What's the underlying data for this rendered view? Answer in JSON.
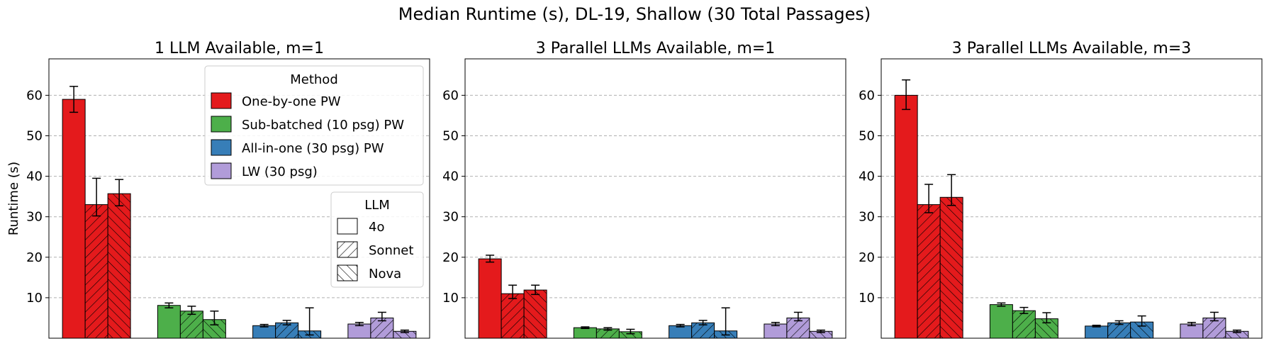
{
  "figure": {
    "suptitle": "Median Runtime (s), DL-19, Shallow (30 Total Passages)"
  },
  "legend_method": {
    "title": "Method",
    "entries": [
      {
        "label": "One-by-one PW",
        "color": "#e41a1c"
      },
      {
        "label": "Sub-batched (10 psg) PW",
        "color": "#4daf4a"
      },
      {
        "label": "All-in-one (30 psg) PW",
        "color": "#377eb8"
      },
      {
        "label": "LW (30 psg)",
        "color": "#b19cd9"
      }
    ]
  },
  "legend_llm": {
    "title": "LLM",
    "entries": [
      {
        "label": "4o",
        "hatch": "none"
      },
      {
        "label": "Sonnet",
        "hatch": "forward-diagonal"
      },
      {
        "label": "Nova",
        "hatch": "backward-diagonal"
      }
    ]
  },
  "chart_data": [
    {
      "type": "bar",
      "title": "1 LLM Available, m=1",
      "ylabel": "Runtime (s)",
      "ylim": [
        0,
        69
      ],
      "yticks": [
        10,
        20,
        30,
        40,
        50,
        60
      ],
      "grid": "y-dashed",
      "legend_position": "upper-right",
      "groups": [
        "One-by-one PW",
        "Sub-batched (10 psg) PW",
        "All-in-one (30 psg) PW",
        "LW (30 psg)"
      ],
      "series": [
        {
          "name": "4o",
          "values": [
            59.0,
            8.1,
            3.1,
            3.5
          ],
          "err_low": [
            3.2,
            0.6,
            0.3,
            0.4
          ],
          "err_high": [
            3.2,
            0.6,
            0.3,
            0.4
          ]
        },
        {
          "name": "Sonnet",
          "values": [
            33.0,
            6.7,
            3.8,
            5.0
          ],
          "err_low": [
            2.8,
            0.8,
            0.5,
            0.7
          ],
          "err_high": [
            6.5,
            1.2,
            0.6,
            1.4
          ]
        },
        {
          "name": "Nova",
          "values": [
            35.7,
            4.6,
            1.8,
            1.7
          ],
          "err_low": [
            3.0,
            1.3,
            1.0,
            0.3
          ],
          "err_high": [
            3.5,
            2.1,
            5.7,
            0.3
          ]
        }
      ]
    },
    {
      "type": "bar",
      "title": "3 Parallel LLMs Available, m=1",
      "ylabel": "",
      "ylim": [
        0,
        69
      ],
      "yticks": [
        10,
        20,
        30,
        40,
        50,
        60
      ],
      "grid": "y-dashed",
      "groups": [
        "One-by-one PW",
        "Sub-batched (10 psg) PW",
        "All-in-one (30 psg) PW",
        "LW (30 psg)"
      ],
      "series": [
        {
          "name": "4o",
          "values": [
            19.6,
            2.6,
            3.1,
            3.5
          ],
          "err_low": [
            0.8,
            0.2,
            0.3,
            0.4
          ],
          "err_high": [
            0.9,
            0.2,
            0.3,
            0.4
          ]
        },
        {
          "name": "Sonnet",
          "values": [
            11.0,
            2.3,
            3.8,
            5.0
          ],
          "err_low": [
            1.2,
            0.3,
            0.5,
            0.7
          ],
          "err_high": [
            2.1,
            0.3,
            0.6,
            1.4
          ]
        },
        {
          "name": "Nova",
          "values": [
            11.9,
            1.6,
            1.8,
            1.7
          ],
          "err_low": [
            1.1,
            0.5,
            1.0,
            0.3
          ],
          "err_high": [
            1.2,
            0.6,
            5.7,
            0.3
          ]
        }
      ]
    },
    {
      "type": "bar",
      "title": "3 Parallel LLMs Available, m=3",
      "ylabel": "",
      "ylim": [
        0,
        69
      ],
      "yticks": [
        10,
        20,
        30,
        40,
        50,
        60
      ],
      "grid": "y-dashed",
      "groups": [
        "One-by-one PW",
        "Sub-batched (10 psg) PW",
        "All-in-one (30 psg) PW",
        "LW (30 psg)"
      ],
      "series": [
        {
          "name": "4o",
          "values": [
            60.0,
            8.3,
            3.0,
            3.5
          ],
          "err_low": [
            3.5,
            0.4,
            0.2,
            0.4
          ],
          "err_high": [
            3.8,
            0.4,
            0.2,
            0.4
          ]
        },
        {
          "name": "Sonnet",
          "values": [
            33.0,
            6.8,
            3.8,
            5.0
          ],
          "err_low": [
            2.0,
            0.7,
            0.4,
            0.7
          ],
          "err_high": [
            5.0,
            0.8,
            0.5,
            1.4
          ]
        },
        {
          "name": "Nova",
          "values": [
            34.8,
            4.8,
            4.0,
            1.7
          ],
          "err_low": [
            2.0,
            1.0,
            1.0,
            0.3
          ],
          "err_high": [
            5.6,
            1.5,
            1.5,
            0.3
          ]
        }
      ]
    }
  ]
}
